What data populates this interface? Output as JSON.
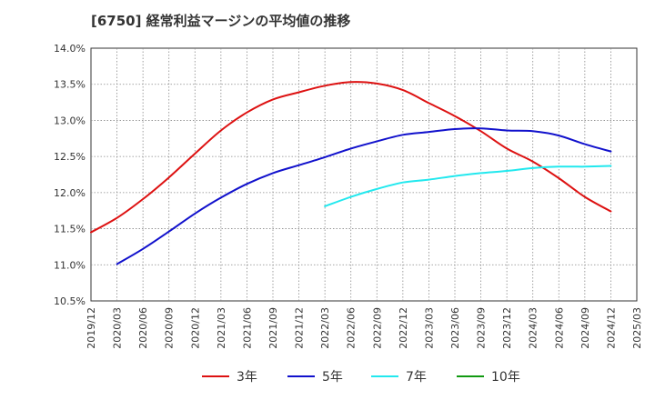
{
  "chart_data": {
    "type": "line",
    "title": "[6750]  経常利益マージンの平均値の推移",
    "xlabel": "",
    "ylabel": "",
    "x_ticks": [
      "2019/12",
      "2020/03",
      "2020/06",
      "2020/09",
      "2020/12",
      "2021/03",
      "2021/06",
      "2021/09",
      "2021/12",
      "2022/03",
      "2022/06",
      "2022/09",
      "2022/12",
      "2023/03",
      "2023/06",
      "2023/09",
      "2023/12",
      "2024/03",
      "2024/06",
      "2024/09",
      "2024/12",
      "2025/03"
    ],
    "y_ticks": [
      "10.5%",
      "11.0%",
      "11.5%",
      "12.0%",
      "12.5%",
      "13.0%",
      "13.5%",
      "14.0%"
    ],
    "ylim": [
      10.5,
      14.0
    ],
    "y_unit": "%",
    "grid": true,
    "legend_position": "bottom",
    "series": [
      {
        "name": "3年",
        "color": "#dd1111",
        "x": [
          "2019/12",
          "2020/03",
          "2020/06",
          "2020/09",
          "2020/12",
          "2021/03",
          "2021/06",
          "2021/09",
          "2021/12",
          "2022/03",
          "2022/06",
          "2022/09",
          "2022/12",
          "2023/03",
          "2023/06",
          "2023/09",
          "2023/12",
          "2024/03",
          "2024/06",
          "2024/09",
          "2024/12"
        ],
        "values": [
          11.45,
          11.65,
          11.91,
          12.21,
          12.54,
          12.86,
          13.11,
          13.29,
          13.39,
          13.48,
          13.53,
          13.51,
          13.42,
          13.24,
          13.06,
          12.85,
          12.61,
          12.43,
          12.2,
          11.94,
          11.74
        ]
      },
      {
        "name": "5年",
        "color": "#1111cc",
        "x": [
          "2020/03",
          "2020/06",
          "2020/09",
          "2020/12",
          "2021/03",
          "2021/06",
          "2021/09",
          "2021/12",
          "2022/03",
          "2022/06",
          "2022/09",
          "2022/12",
          "2023/03",
          "2023/06",
          "2023/09",
          "2023/12",
          "2024/03",
          "2024/06",
          "2024/09",
          "2024/12"
        ],
        "values": [
          11.01,
          11.22,
          11.46,
          11.71,
          11.93,
          12.12,
          12.27,
          12.38,
          12.49,
          12.61,
          12.71,
          12.8,
          12.84,
          12.88,
          12.89,
          12.86,
          12.85,
          12.79,
          12.67,
          12.57
        ]
      },
      {
        "name": "7年",
        "color": "#22e8ee",
        "x": [
          "2022/03",
          "2022/06",
          "2022/09",
          "2022/12",
          "2023/03",
          "2023/06",
          "2023/09",
          "2023/12",
          "2024/03",
          "2024/06",
          "2024/09",
          "2024/12"
        ],
        "values": [
          11.81,
          11.94,
          12.05,
          12.14,
          12.18,
          12.23,
          12.27,
          12.3,
          12.34,
          12.36,
          12.36,
          12.37
        ]
      },
      {
        "name": "10年",
        "color": "#119911",
        "x": [],
        "values": []
      }
    ]
  }
}
